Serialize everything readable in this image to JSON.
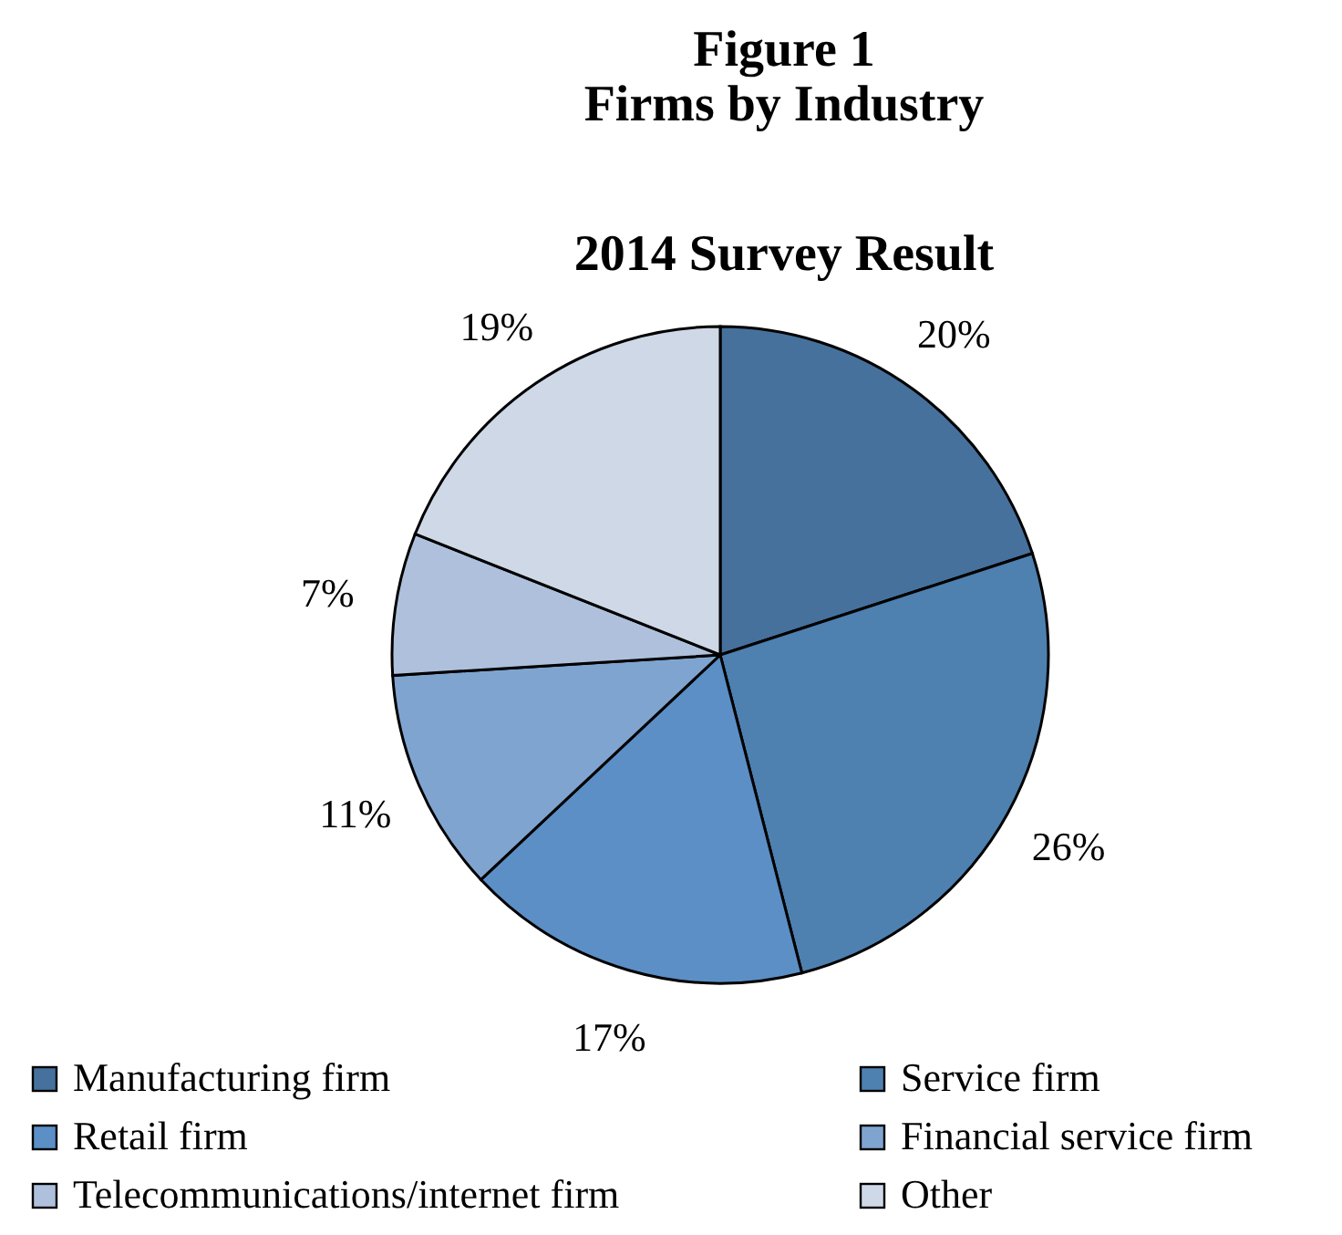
{
  "chart_data": {
    "type": "pie",
    "title": "Figure 1\nFirms by Industry",
    "subtitle": "2014 Survey Result",
    "categories": [
      "Manufacturing firm",
      "Service firm",
      "Retail firm",
      "Financial service firm",
      "Telecommunications/internet firm",
      "Other"
    ],
    "values": [
      20,
      26,
      17,
      11,
      7,
      19
    ],
    "value_labels": [
      "20%",
      "26%",
      "17%",
      "11%",
      "7%",
      "19%"
    ],
    "colors": [
      "#46719c",
      "#4e80b0",
      "#5b8fc5",
      "#7fa4cf",
      "#aec0dc",
      "#cfd8e6"
    ],
    "legend": "bottom"
  }
}
